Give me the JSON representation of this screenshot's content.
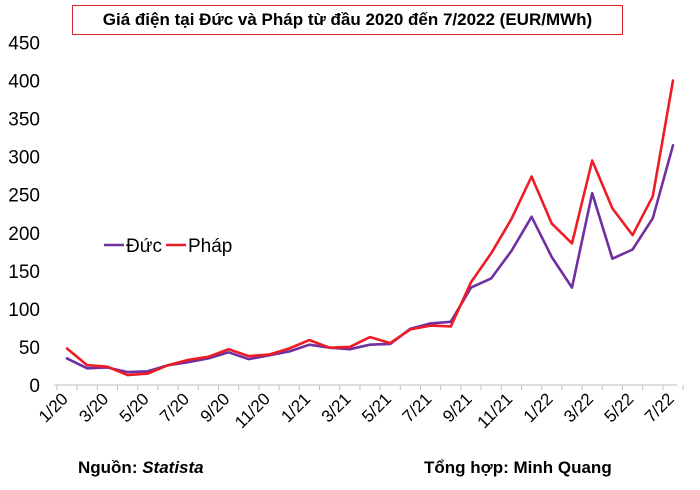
{
  "chart_data": {
    "type": "line",
    "title": "Giá điện tại Đức và Pháp từ đầu 2020 đến 7/2022 (EUR/MWh)",
    "xlabel": "",
    "ylabel": "",
    "ylim": [
      0,
      450
    ],
    "yticks": [
      0,
      50,
      100,
      150,
      200,
      250,
      300,
      350,
      400,
      450
    ],
    "x": [
      "1/20",
      "2/20",
      "3/20",
      "4/20",
      "5/20",
      "6/20",
      "7/20",
      "8/20",
      "9/20",
      "10/20",
      "11/20",
      "12/20",
      "1/21",
      "2/21",
      "3/21",
      "4/21",
      "5/21",
      "6/21",
      "7/21",
      "8/21",
      "9/21",
      "10/21",
      "11/21",
      "12/21",
      "1/22",
      "2/22",
      "3/22",
      "4/22",
      "5/22",
      "6/22",
      "7/22"
    ],
    "xtick_labels": [
      "1/20",
      "3/20",
      "5/20",
      "7/20",
      "9/20",
      "11/20",
      "1/21",
      "3/21",
      "5/21",
      "7/21",
      "9/21",
      "11/21",
      "1/22",
      "3/22",
      "5/22",
      "7/22"
    ],
    "grid": false,
    "legend_position": "left-middle",
    "series": [
      {
        "name": "Đức",
        "color": "#7030a0",
        "values": [
          35,
          22,
          23,
          17,
          18,
          26,
          30,
          35,
          43,
          34,
          39,
          44,
          53,
          49,
          47,
          53,
          54,
          74,
          81,
          83,
          128,
          140,
          176,
          221,
          168,
          128,
          252,
          166,
          178,
          219,
          315
        ]
      },
      {
        "name": "Pháp",
        "color": "#ee1c25",
        "values": [
          48,
          26,
          24,
          13,
          15,
          26,
          33,
          37,
          47,
          38,
          40,
          48,
          59,
          49,
          50,
          63,
          55,
          73,
          78,
          77,
          135,
          173,
          218,
          274,
          212,
          186,
          295,
          232,
          197,
          248,
          400
        ]
      }
    ]
  },
  "footer": {
    "source_prefix": "Nguồn:",
    "source_name": "Statista",
    "compiled": "Tổng hợp: Minh Quang"
  }
}
